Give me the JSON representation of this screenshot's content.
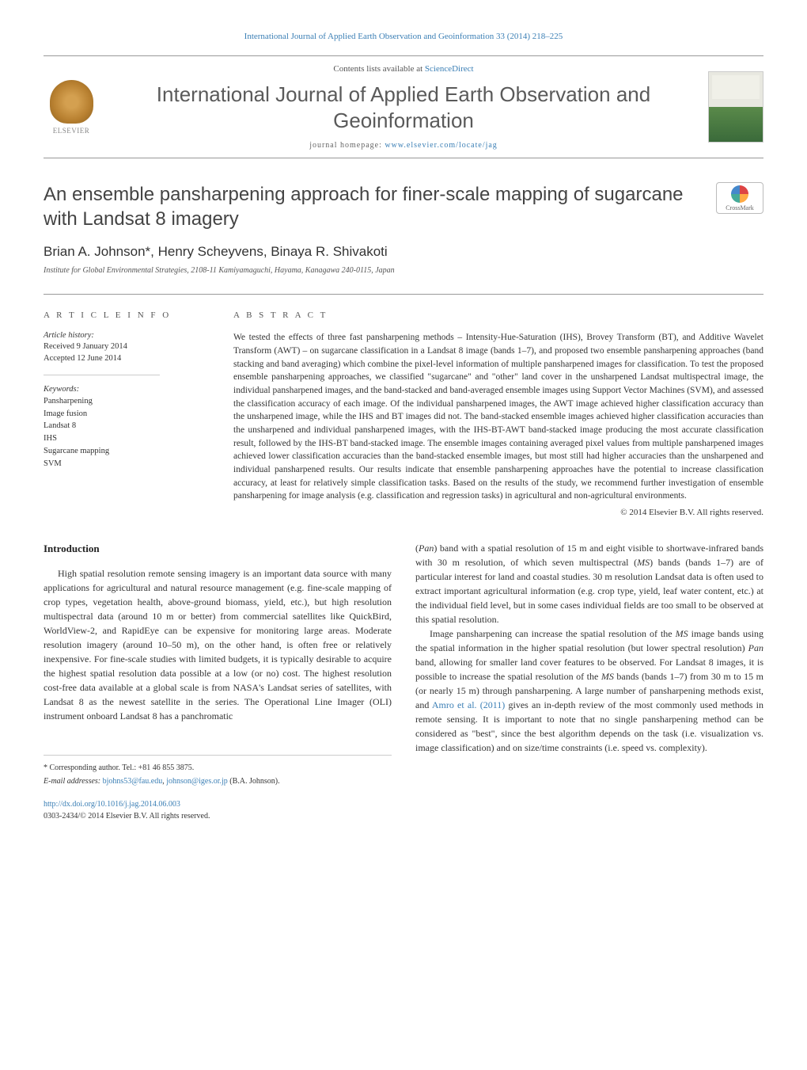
{
  "colors": {
    "link": "#3b7fb5",
    "text": "#333333",
    "heading_gray": "#5a5a5a",
    "border": "#999999"
  },
  "header": {
    "top_link": "International Journal of Applied Earth Observation and Geoinformation 33 (2014) 218–225",
    "contents_prefix": "Contents lists available at ",
    "contents_link": "ScienceDirect",
    "journal_title": "International Journal of Applied Earth Observation and Geoinformation",
    "homepage_prefix": "journal homepage: ",
    "homepage_url": "www.elsevier.com/locate/jag",
    "publisher": "ELSEVIER"
  },
  "article": {
    "title": "An ensemble pansharpening approach for finer-scale mapping of sugarcane with Landsat 8 imagery",
    "crossmark_label": "CrossMark",
    "authors": "Brian A. Johnson*, Henry Scheyvens, Binaya R. Shivakoti",
    "affiliation": "Institute for Global Environmental Strategies, 2108-11 Kamiyamaguchi, Hayama, Kanagawa 240-0115, Japan"
  },
  "info": {
    "heading": "A R T I C L E   I N F O",
    "history_label": "Article history:",
    "received": "Received 9 January 2014",
    "accepted": "Accepted 12 June 2014",
    "keywords_label": "Keywords:",
    "keywords": [
      "Pansharpening",
      "Image fusion",
      "Landsat 8",
      "IHS",
      "Sugarcane mapping",
      "SVM"
    ]
  },
  "abstract": {
    "heading": "A B S T R A C T",
    "text": "We tested the effects of three fast pansharpening methods – Intensity-Hue-Saturation (IHS), Brovey Transform (BT), and Additive Wavelet Transform (AWT) – on sugarcane classification in a Landsat 8 image (bands 1–7), and proposed two ensemble pansharpening approaches (band stacking and band averaging) which combine the pixel-level information of multiple pansharpened images for classification. To test the proposed ensemble pansharpening approaches, we classified \"sugarcane\" and \"other\" land cover in the unsharpened Landsat multispectral image, the individual pansharpened images, and the band-stacked and band-averaged ensemble images using Support Vector Machines (SVM), and assessed the classification accuracy of each image. Of the individual pansharpened images, the AWT image achieved higher classification accuracy than the unsharpened image, while the IHS and BT images did not. The band-stacked ensemble images achieved higher classification accuracies than the unsharpened and individual pansharpened images, with the IHS-BT-AWT band-stacked image producing the most accurate classification result, followed by the IHS-BT band-stacked image. The ensemble images containing averaged pixel values from multiple pansharpened images achieved lower classification accuracies than the band-stacked ensemble images, but most still had higher accuracies than the unsharpened and individual pansharpened results. Our results indicate that ensemble pansharpening approaches have the potential to increase classification accuracy, at least for relatively simple classification tasks. Based on the results of the study, we recommend further investigation of ensemble pansharpening for image analysis (e.g. classification and regression tasks) in agricultural and non-agricultural environments.",
    "copyright": "© 2014 Elsevier B.V. All rights reserved."
  },
  "body": {
    "section_heading": "Introduction",
    "col1_p1": "High spatial resolution remote sensing imagery is an important data source with many applications for agricultural and natural resource management (e.g. fine-scale mapping of crop types, vegetation health, above-ground biomass, yield, etc.), but high resolution multispectral data (around 10 m or better) from commercial satellites like QuickBird, WorldView-2, and RapidEye can be expensive for monitoring large areas. Moderate resolution imagery (around 10–50 m), on the other hand, is often free or relatively inexpensive. For fine-scale studies with limited budgets, it is typically desirable to acquire the highest spatial resolution data possible at a low (or no) cost. The highest resolution cost-free data available at a global scale is from NASA's Landsat series of satellites, with Landsat 8 as the newest satellite in the series. The Operational Line Imager (OLI) instrument onboard Landsat 8 has a panchromatic",
    "col2_p1_prefix": "(",
    "col2_p1_pan": "Pan",
    "col2_p1_mid": ") band with a spatial resolution of 15 m and eight visible to shortwave-infrared bands with 30 m resolution, of which seven multispectral (",
    "col2_p1_ms": "MS",
    "col2_p1_rest": ") bands (bands 1–7) are of particular interest for land and coastal studies. 30 m resolution Landsat data is often used to extract important agricultural information (e.g. crop type, yield, leaf water content, etc.) at the individual field level, but in some cases individual fields are too small to be observed at this spatial resolution.",
    "col2_p2_a": "Image pansharpening can increase the spatial resolution of the ",
    "col2_p2_b": " image bands using the spatial information in the higher spatial resolution (but lower spectral resolution) ",
    "col2_p2_c": " band, allowing for smaller land cover features to be observed. For Landsat 8 images, it is possible to increase the spatial resolution of the ",
    "col2_p2_d": " bands (bands 1–7) from 30 m to 15 m (or nearly 15 m) through pansharpening. A large number of pansharpening methods exist, and ",
    "col2_p2_cite": "Amro et al. (2011)",
    "col2_p2_e": " gives an in-depth review of the most commonly used methods in remote sensing. It is important to note that no single pansharpening method can be considered as \"best\", since the best algorithm depends on the task (i.e. visualization vs. image classification) and on size/time constraints (i.e. speed vs. complexity)."
  },
  "footer": {
    "corresponding": "* Corresponding author. Tel.: +81 46 855 3875.",
    "email_label": "E-mail addresses: ",
    "email1": "bjohns53@fau.edu",
    "email_sep": ", ",
    "email2": "johnson@iges.or.jp",
    "email_suffix": " (B.A. Johnson).",
    "doi": "http://dx.doi.org/10.1016/j.jag.2014.06.003",
    "issn_line": "0303-2434/© 2014 Elsevier B.V. All rights reserved."
  }
}
